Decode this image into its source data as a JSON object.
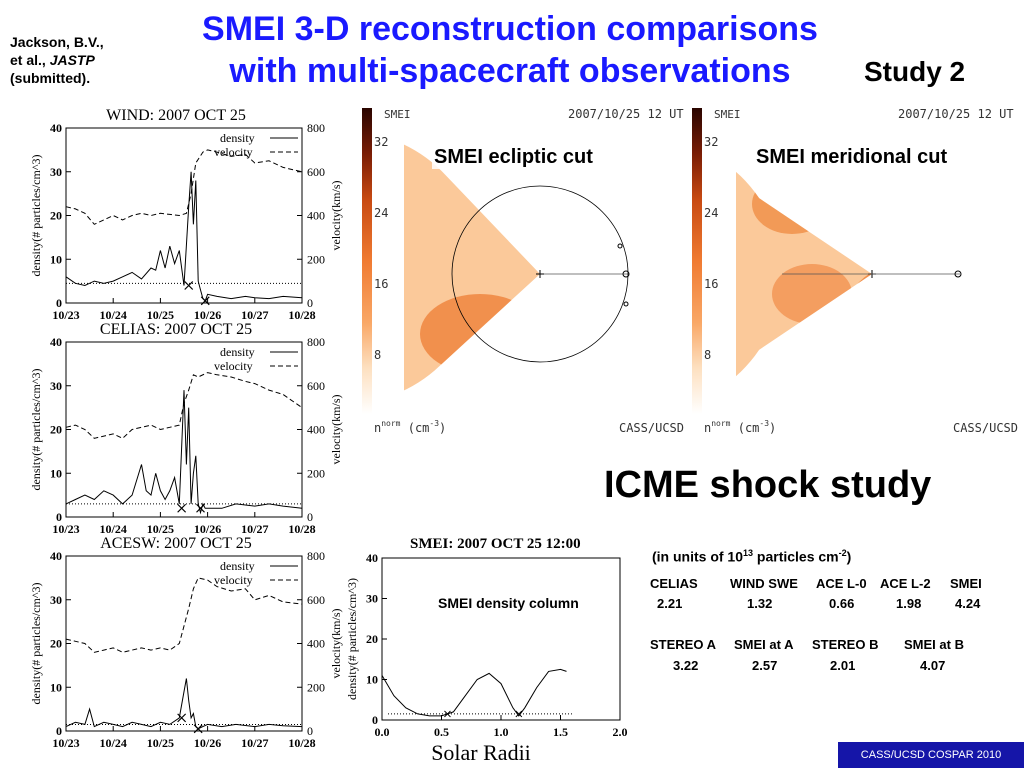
{
  "slide": {
    "title_line1": "SMEI 3-D reconstruction comparisons",
    "title_line2": "with multi-spacecraft observations",
    "citation_line1": "Jackson, B.V.,",
    "citation_line2_a": "et al., ",
    "citation_line2_b": "JASTP",
    "citation_line3": "(submitted).",
    "study_label": "Study 2",
    "icme_label": "ICME shock study",
    "footer": "CASS/UCSD COSPAR 2010",
    "colors": {
      "title": "#1a1aff",
      "footer_bg": "#1515a8"
    }
  },
  "units_note": {
    "prefix": "(in units of 10",
    "exponent": "13",
    "middle": " particles cm",
    "exp2": "-2",
    "suffix": ")"
  },
  "comparison_table": {
    "row1_headers": [
      "CELIAS",
      "WIND SWE",
      "ACE L-0",
      "ACE L-2",
      "SMEI"
    ],
    "row1_values": [
      "2.21",
      "1.32",
      "0.66",
      "1.98",
      "4.24"
    ],
    "row2_headers": [
      "STEREO A",
      "SMEI at A",
      "STEREO B",
      "SMEI at B"
    ],
    "row2_values": [
      "3.22",
      "2.57",
      "2.01",
      "4.07"
    ]
  },
  "maps": {
    "left": {
      "label": "SMEI ecliptic cut",
      "top_left": "SMEI",
      "timestamp": "2007/10/25 12 UT",
      "scale_ticks": [
        "32",
        "24",
        "16",
        "8"
      ],
      "unit_label": "n",
      "unit_sup": "norm",
      "unit_paren": "(cm",
      "unit_exp": "-3",
      "unit_close": ")",
      "credit": "CASS/UCSD"
    },
    "right": {
      "label": "SMEI meridional cut",
      "top_left": "SMEI",
      "timestamp": "2007/10/25 12 UT",
      "scale_ticks": [
        "32",
        "24",
        "16",
        "8"
      ],
      "unit_label": "n",
      "unit_sup": "norm",
      "unit_paren": "(cm",
      "unit_exp": "-3",
      "unit_close": ")",
      "credit": "CASS/UCSD"
    }
  },
  "chart_data": [
    {
      "type": "line",
      "title": "WIND: 2007 OCT 25",
      "xlabel": "",
      "ylabel_left": "density(# particles/cm^3)",
      "ylabel_right": "velocity(km/s)",
      "x_ticks": [
        "10/23",
        "10/24",
        "10/25",
        "10/26",
        "10/27",
        "10/28"
      ],
      "x_range": [
        0,
        5
      ],
      "ylim_left": [
        0,
        40
      ],
      "ylim_right": [
        0,
        800
      ],
      "y_ticks_left": [
        "0",
        "10",
        "20",
        "30",
        "40"
      ],
      "y_ticks_right": [
        "0",
        "200",
        "400",
        "600",
        "800"
      ],
      "legend": [
        "density",
        "velocity"
      ],
      "legend_position": "top-right",
      "baseline": 4.5,
      "markers": [
        {
          "x": 2.6,
          "y": 4
        },
        {
          "x": 2.95,
          "y": 0.5
        }
      ],
      "series": [
        {
          "name": "density",
          "style": "solid",
          "x": [
            0,
            0.2,
            0.4,
            0.6,
            0.8,
            1.0,
            1.2,
            1.4,
            1.6,
            1.8,
            1.9,
            2.0,
            2.1,
            2.2,
            2.3,
            2.4,
            2.5,
            2.6,
            2.65,
            2.7,
            2.75,
            2.8,
            2.85,
            2.9,
            2.95,
            3.0,
            3.2,
            3.5,
            3.8,
            4.0,
            4.3,
            4.6,
            5.0
          ],
          "y": [
            6,
            4.5,
            4,
            5,
            4.5,
            5,
            6,
            7,
            5.5,
            8,
            7.5,
            12,
            8,
            13,
            9,
            12,
            4,
            22,
            30,
            18,
            28,
            5,
            3,
            1,
            0.5,
            2,
            1.5,
            1,
            1.5,
            1.2,
            1,
            1.5,
            1.2
          ]
        },
        {
          "name": "velocity",
          "style": "dashed",
          "x": [
            0,
            0.2,
            0.4,
            0.6,
            0.8,
            1.0,
            1.2,
            1.4,
            1.6,
            1.8,
            2.0,
            2.2,
            2.4,
            2.55,
            2.65,
            2.75,
            2.9,
            3.0,
            3.2,
            3.5,
            3.8,
            4.0,
            4.3,
            4.6,
            5.0
          ],
          "y": [
            440,
            430,
            410,
            360,
            380,
            400,
            380,
            400,
            410,
            400,
            410,
            405,
            400,
            410,
            500,
            640,
            690,
            700,
            690,
            670,
            680,
            640,
            650,
            620,
            600
          ]
        }
      ]
    },
    {
      "type": "line",
      "title": "CELIAS: 2007 OCT 25",
      "xlabel": "",
      "ylabel_left": "density(# particles/cm^3)",
      "ylabel_right": "velocity(km/s)",
      "x_ticks": [
        "10/23",
        "10/24",
        "10/25",
        "10/26",
        "10/27",
        "10/28"
      ],
      "x_range": [
        0,
        5
      ],
      "ylim_left": [
        0,
        40
      ],
      "ylim_right": [
        0,
        800
      ],
      "y_ticks_left": [
        "0",
        "10",
        "20",
        "30",
        "40"
      ],
      "y_ticks_right": [
        "0",
        "200",
        "400",
        "600",
        "800"
      ],
      "legend": [
        "density",
        "velocity"
      ],
      "legend_position": "top-right",
      "baseline": 3,
      "markers": [
        {
          "x": 2.45,
          "y": 2
        },
        {
          "x": 2.85,
          "y": 2
        }
      ],
      "series": [
        {
          "name": "density",
          "style": "solid",
          "x": [
            0,
            0.2,
            0.4,
            0.6,
            0.8,
            1.0,
            1.2,
            1.4,
            1.6,
            1.7,
            1.8,
            1.9,
            2.0,
            2.1,
            2.2,
            2.3,
            2.4,
            2.5,
            2.55,
            2.6,
            2.65,
            2.7,
            2.75,
            2.8,
            2.85,
            2.9,
            2.95,
            3.0,
            3.3,
            3.6,
            4.0,
            4.3,
            4.6,
            5.0
          ],
          "y": [
            3,
            4,
            5,
            4,
            6,
            5,
            3,
            5,
            12,
            6,
            5,
            10,
            6,
            4,
            6,
            9,
            3,
            29,
            12,
            25,
            3,
            10,
            14,
            3,
            1,
            3,
            2,
            2,
            2,
            3,
            2.5,
            3,
            2.5,
            2
          ]
        },
        {
          "name": "velocity",
          "style": "dashed",
          "x": [
            0,
            0.2,
            0.4,
            0.6,
            0.8,
            1.0,
            1.2,
            1.4,
            1.6,
            1.8,
            2.0,
            2.2,
            2.4,
            2.5,
            2.6,
            2.7,
            2.8,
            3.0,
            3.2,
            3.5,
            3.8,
            4.0,
            4.3,
            4.6,
            5.0
          ],
          "y": [
            410,
            420,
            400,
            360,
            370,
            380,
            360,
            400,
            410,
            420,
            400,
            410,
            420,
            520,
            580,
            650,
            640,
            660,
            650,
            640,
            620,
            610,
            580,
            560,
            500
          ]
        }
      ]
    },
    {
      "type": "line",
      "title": "ACESW: 2007 OCT 25",
      "xlabel": "",
      "ylabel_left": "density(# particles/cm^3)",
      "ylabel_right": "velocity(km/s)",
      "x_ticks": [
        "10/23",
        "10/24",
        "10/25",
        "10/26",
        "10/27",
        "10/28"
      ],
      "x_range": [
        0,
        5
      ],
      "ylim_left": [
        0,
        40
      ],
      "ylim_right": [
        0,
        800
      ],
      "y_ticks_left": [
        "0",
        "10",
        "20",
        "30",
        "40"
      ],
      "y_ticks_right": [
        "0",
        "200",
        "400",
        "600",
        "800"
      ],
      "legend": [
        "density",
        "velocity"
      ],
      "legend_position": "top-right",
      "baseline": 1.5,
      "markers": [
        {
          "x": 2.45,
          "y": 3
        },
        {
          "x": 2.8,
          "y": 0.5
        }
      ],
      "series": [
        {
          "name": "density",
          "style": "solid",
          "x": [
            0,
            0.2,
            0.4,
            0.5,
            0.6,
            0.8,
            1.0,
            1.2,
            1.4,
            1.6,
            1.8,
            2.0,
            2.2,
            2.4,
            2.5,
            2.55,
            2.6,
            2.65,
            2.7,
            2.75,
            2.8,
            2.9,
            3.0,
            3.3,
            3.6,
            4.0,
            4.3,
            4.6,
            5.0
          ],
          "y": [
            1,
            2,
            1.5,
            5,
            1,
            2,
            1.5,
            1,
            2,
            1.5,
            1,
            2,
            1.5,
            3,
            9,
            12,
            7,
            3,
            4,
            1,
            0.5,
            1,
            1.5,
            1,
            1.5,
            1,
            1.5,
            1.2,
            1
          ]
        },
        {
          "name": "velocity",
          "style": "dashed",
          "x": [
            0,
            0.2,
            0.4,
            0.6,
            0.8,
            1.0,
            1.2,
            1.4,
            1.6,
            1.8,
            2.0,
            2.2,
            2.4,
            2.5,
            2.6,
            2.7,
            2.8,
            3.0,
            3.2,
            3.5,
            3.8,
            4.0,
            4.3,
            4.6,
            5.0
          ],
          "y": [
            420,
            410,
            400,
            360,
            370,
            380,
            360,
            370,
            380,
            370,
            380,
            370,
            400,
            480,
            560,
            650,
            700,
            690,
            660,
            640,
            650,
            600,
            620,
            590,
            580
          ]
        }
      ]
    },
    {
      "type": "line",
      "title_bold": "SMEI",
      "title_rest": ": 2007 OCT 25 12:00",
      "inner_label": "SMEI density column",
      "xlabel": "Solar Radii",
      "ylabel": "density(# particles/cm^3)",
      "x_ticks": [
        "0.0",
        "0.5",
        "1.0",
        "1.5",
        "2.0"
      ],
      "xlim": [
        0,
        2
      ],
      "ylim": [
        0,
        40
      ],
      "y_ticks": [
        "0",
        "10",
        "20",
        "30",
        "40"
      ],
      "baseline": 1.5,
      "markers": [
        {
          "x": 0.55,
          "y": 1.5
        },
        {
          "x": 1.15,
          "y": 1.5
        }
      ],
      "series": [
        {
          "name": "density",
          "x": [
            0.0,
            0.1,
            0.2,
            0.3,
            0.4,
            0.5,
            0.6,
            0.7,
            0.8,
            0.9,
            1.0,
            1.1,
            1.15,
            1.2,
            1.3,
            1.4,
            1.5,
            1.55
          ],
          "y": [
            11,
            6,
            3,
            1.5,
            1,
            1,
            2,
            6,
            10,
            11.5,
            9,
            3,
            1,
            3,
            8,
            12,
            12.5,
            12
          ]
        }
      ]
    }
  ]
}
